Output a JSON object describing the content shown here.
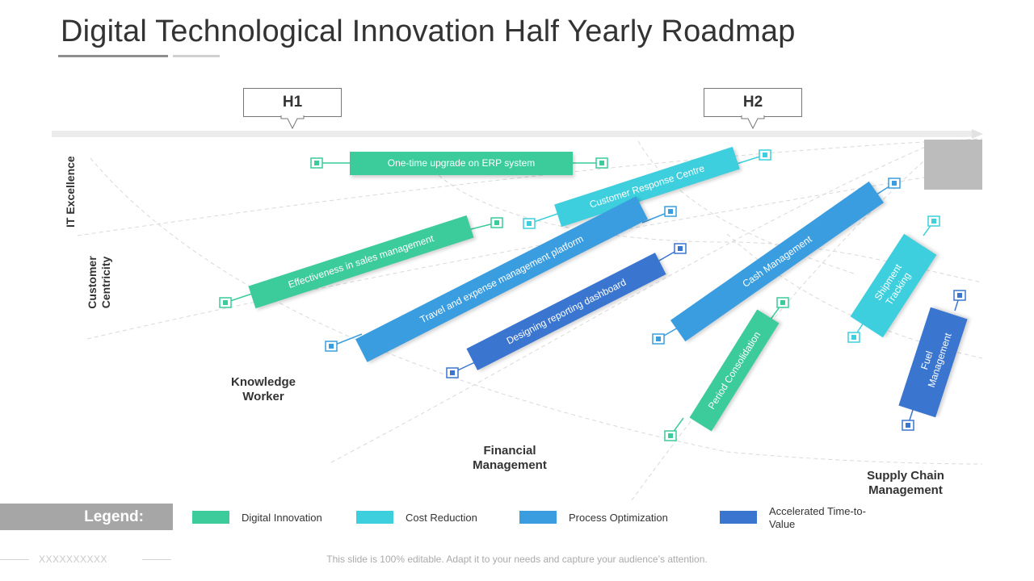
{
  "title": "Digital Technological Innovation Half Yearly Roadmap",
  "halves": {
    "h1": "H1",
    "h2": "H2"
  },
  "zones": {
    "it_excellence": "IT Excellence",
    "customer_centricity": "Customer Centricity",
    "knowledge_worker": "Knowledge Worker",
    "financial_management": "Financial Management",
    "supply_chain_management": "Supply Chain Management"
  },
  "initiatives": [
    {
      "label": "One-time upgrade on ERP system",
      "category": "Digital Innovation",
      "color": "#3ccb9a"
    },
    {
      "label": "Customer Response Centre",
      "category": "Cost Reduction",
      "color": "#3dcfdd"
    },
    {
      "label": "Effectiveness in sales management",
      "category": "Digital Innovation",
      "color": "#3ccb9a"
    },
    {
      "label": "Travel and expense management platform",
      "category": "Process Optimization",
      "color": "#3a9de0"
    },
    {
      "label": "Designing reporting dashboard",
      "category": "Accelerated Time-to-Value",
      "color": "#3a75d0"
    },
    {
      "label": "Cash Management",
      "category": "Process Optimization",
      "color": "#3a9de0"
    },
    {
      "label": "Shipment Tracking",
      "category": "Cost Reduction",
      "color": "#3dcfdd"
    },
    {
      "label": "Period Consolidation",
      "category": "Digital Innovation",
      "color": "#3ccb9a"
    },
    {
      "label": "Fuel Management",
      "category": "Accelerated Time-to-Value",
      "color": "#3a75d0"
    }
  ],
  "legend": {
    "title": "Legend:",
    "items": [
      {
        "label": "Digital Innovation",
        "color": "#3ccb9a"
      },
      {
        "label": "Cost Reduction",
        "color": "#3dcfdd"
      },
      {
        "label": "Process Optimization",
        "color": "#3a9de0"
      },
      {
        "label": "Accelerated Time-to-Value",
        "color": "#3a75d0"
      }
    ]
  },
  "footer": {
    "placeholder": "XXXXXXXXXX",
    "note": "This slide is 100% editable. Adapt it to your needs and capture your audience’s attention."
  }
}
